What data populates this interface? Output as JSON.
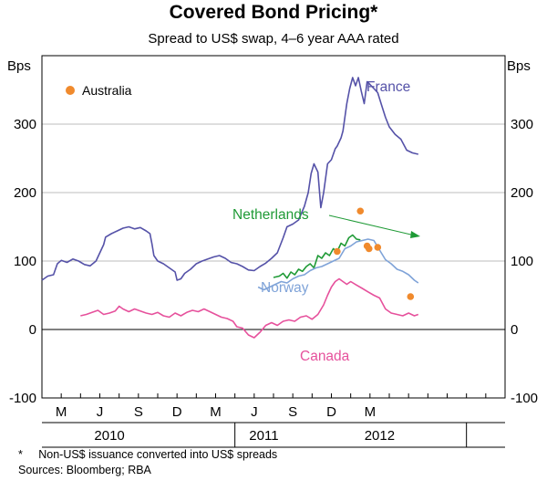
{
  "chart_data": {
    "type": "line",
    "title": "Covered Bond Pricing*",
    "subtitle": "Spread to US$ swap, 4–6 year AAA rated",
    "ylabel_left": "Bps",
    "ylabel_right": "Bps",
    "ylim": [
      -100,
      400
    ],
    "yticks": [
      -100,
      0,
      100,
      200,
      300
    ],
    "xlim": [
      0,
      24
    ],
    "month_ticks": [
      {
        "label": "M",
        "x": 1
      },
      {
        "label": "J",
        "x": 3
      },
      {
        "label": "S",
        "x": 5
      },
      {
        "label": "D",
        "x": 7
      },
      {
        "label": "M",
        "x": 9
      },
      {
        "label": "J",
        "x": 11
      },
      {
        "label": "S",
        "x": 13
      },
      {
        "label": "D",
        "x": 15
      },
      {
        "label": "M",
        "x": 17
      }
    ],
    "year_labels": [
      {
        "label": "2010",
        "x": 3.5
      },
      {
        "label": "2011",
        "x": 11.5
      },
      {
        "label": "2012",
        "x": 17.5
      }
    ],
    "series": [
      {
        "name": "France",
        "color": "#5552a8",
        "points": [
          [
            0.0,
            72
          ],
          [
            0.3,
            78
          ],
          [
            0.6,
            80
          ],
          [
            0.8,
            96
          ],
          [
            1.0,
            101
          ],
          [
            1.3,
            98
          ],
          [
            1.6,
            103
          ],
          [
            1.9,
            100
          ],
          [
            2.2,
            95
          ],
          [
            2.5,
            93
          ],
          [
            2.8,
            100
          ],
          [
            3.0,
            112
          ],
          [
            3.2,
            124
          ],
          [
            3.3,
            135
          ],
          [
            3.6,
            140
          ],
          [
            3.9,
            144
          ],
          [
            4.2,
            148
          ],
          [
            4.5,
            150
          ],
          [
            4.8,
            147
          ],
          [
            5.1,
            149
          ],
          [
            5.4,
            144
          ],
          [
            5.6,
            140
          ],
          [
            5.7,
            125
          ],
          [
            5.8,
            108
          ],
          [
            6.0,
            100
          ],
          [
            6.3,
            96
          ],
          [
            6.6,
            90
          ],
          [
            6.9,
            84
          ],
          [
            7.0,
            72
          ],
          [
            7.2,
            74
          ],
          [
            7.4,
            82
          ],
          [
            7.7,
            88
          ],
          [
            8.0,
            96
          ],
          [
            8.3,
            100
          ],
          [
            8.6,
            103
          ],
          [
            8.9,
            106
          ],
          [
            9.2,
            108
          ],
          [
            9.5,
            104
          ],
          [
            9.8,
            98
          ],
          [
            10.1,
            96
          ],
          [
            10.4,
            92
          ],
          [
            10.7,
            87
          ],
          [
            11.0,
            86
          ],
          [
            11.3,
            92
          ],
          [
            11.6,
            97
          ],
          [
            11.9,
            104
          ],
          [
            12.2,
            112
          ],
          [
            12.5,
            134
          ],
          [
            12.7,
            150
          ],
          [
            13.0,
            154
          ],
          [
            13.3,
            160
          ],
          [
            13.6,
            180
          ],
          [
            13.8,
            200
          ],
          [
            13.95,
            228
          ],
          [
            14.1,
            242
          ],
          [
            14.3,
            230
          ],
          [
            14.45,
            178
          ],
          [
            14.6,
            200
          ],
          [
            14.8,
            242
          ],
          [
            15.0,
            248
          ],
          [
            15.2,
            264
          ],
          [
            15.3,
            268
          ],
          [
            15.5,
            280
          ],
          [
            15.6,
            290
          ],
          [
            15.7,
            310
          ],
          [
            15.8,
            330
          ],
          [
            15.95,
            352
          ],
          [
            16.1,
            368
          ],
          [
            16.25,
            356
          ],
          [
            16.4,
            368
          ],
          [
            16.55,
            348
          ],
          [
            16.7,
            330
          ],
          [
            16.85,
            362
          ],
          [
            17.0,
            358
          ],
          [
            17.2,
            352
          ],
          [
            17.4,
            346
          ],
          [
            17.6,
            328
          ],
          [
            17.8,
            310
          ],
          [
            18.0,
            296
          ],
          [
            18.3,
            285
          ],
          [
            18.6,
            278
          ],
          [
            18.9,
            262
          ],
          [
            19.2,
            258
          ],
          [
            19.5,
            256
          ]
        ]
      },
      {
        "name": "Netherlands",
        "color": "#1f9a36",
        "points": [
          [
            12.0,
            76
          ],
          [
            12.3,
            78
          ],
          [
            12.5,
            82
          ],
          [
            12.7,
            75
          ],
          [
            12.9,
            84
          ],
          [
            13.1,
            80
          ],
          [
            13.3,
            88
          ],
          [
            13.5,
            85
          ],
          [
            13.7,
            92
          ],
          [
            13.9,
            96
          ],
          [
            14.1,
            90
          ],
          [
            14.3,
            108
          ],
          [
            14.5,
            104
          ],
          [
            14.7,
            112
          ],
          [
            14.9,
            108
          ],
          [
            15.1,
            118
          ],
          [
            15.3,
            114
          ],
          [
            15.5,
            126
          ],
          [
            15.7,
            122
          ],
          [
            15.9,
            134
          ],
          [
            16.1,
            138
          ],
          [
            16.3,
            132
          ],
          [
            16.5,
            131
          ]
        ]
      },
      {
        "name": "Norway",
        "color": "#7fa3d8",
        "points": [
          [
            11.2,
            62
          ],
          [
            11.5,
            58
          ],
          [
            11.8,
            62
          ],
          [
            12.1,
            66
          ],
          [
            12.4,
            70
          ],
          [
            12.7,
            68
          ],
          [
            13.0,
            74
          ],
          [
            13.3,
            78
          ],
          [
            13.6,
            80
          ],
          [
            13.9,
            86
          ],
          [
            14.2,
            90
          ],
          [
            14.5,
            92
          ],
          [
            14.8,
            96
          ],
          [
            15.1,
            100
          ],
          [
            15.4,
            104
          ],
          [
            15.7,
            118
          ],
          [
            16.0,
            122
          ],
          [
            16.3,
            128
          ],
          [
            16.6,
            130
          ],
          [
            16.9,
            132
          ],
          [
            17.2,
            130
          ],
          [
            17.5,
            116
          ],
          [
            17.8,
            102
          ],
          [
            18.1,
            96
          ],
          [
            18.4,
            88
          ],
          [
            18.7,
            85
          ],
          [
            19.0,
            80
          ],
          [
            19.3,
            72
          ],
          [
            19.5,
            68
          ]
        ]
      },
      {
        "name": "Canada",
        "color": "#e6519c",
        "points": [
          [
            2.0,
            20
          ],
          [
            2.3,
            22
          ],
          [
            2.6,
            25
          ],
          [
            2.9,
            28
          ],
          [
            3.2,
            22
          ],
          [
            3.5,
            24
          ],
          [
            3.8,
            27
          ],
          [
            4.0,
            34
          ],
          [
            4.2,
            30
          ],
          [
            4.5,
            26
          ],
          [
            4.8,
            30
          ],
          [
            5.1,
            27
          ],
          [
            5.4,
            24
          ],
          [
            5.7,
            22
          ],
          [
            6.0,
            25
          ],
          [
            6.3,
            20
          ],
          [
            6.6,
            18
          ],
          [
            6.9,
            24
          ],
          [
            7.2,
            20
          ],
          [
            7.5,
            25
          ],
          [
            7.8,
            28
          ],
          [
            8.1,
            26
          ],
          [
            8.4,
            30
          ],
          [
            8.7,
            26
          ],
          [
            9.0,
            22
          ],
          [
            9.3,
            18
          ],
          [
            9.6,
            16
          ],
          [
            9.9,
            12
          ],
          [
            10.1,
            4
          ],
          [
            10.4,
            2
          ],
          [
            10.7,
            -8
          ],
          [
            11.0,
            -12
          ],
          [
            11.3,
            -4
          ],
          [
            11.6,
            6
          ],
          [
            11.9,
            10
          ],
          [
            12.2,
            6
          ],
          [
            12.5,
            12
          ],
          [
            12.8,
            14
          ],
          [
            13.1,
            12
          ],
          [
            13.4,
            18
          ],
          [
            13.7,
            20
          ],
          [
            14.0,
            15
          ],
          [
            14.3,
            22
          ],
          [
            14.6,
            36
          ],
          [
            14.8,
            50
          ],
          [
            15.0,
            62
          ],
          [
            15.2,
            70
          ],
          [
            15.4,
            74
          ],
          [
            15.6,
            70
          ],
          [
            15.8,
            66
          ],
          [
            16.0,
            70
          ],
          [
            16.3,
            65
          ],
          [
            16.6,
            60
          ],
          [
            16.9,
            55
          ],
          [
            17.2,
            50
          ],
          [
            17.5,
            46
          ],
          [
            17.8,
            30
          ],
          [
            18.1,
            24
          ],
          [
            18.4,
            22
          ],
          [
            18.7,
            20
          ],
          [
            19.0,
            24
          ],
          [
            19.3,
            20
          ],
          [
            19.5,
            22
          ]
        ]
      }
    ],
    "scatter": {
      "name": "Australia",
      "color": "#f08a2d",
      "points": [
        [
          15.3,
          114
        ],
        [
          16.5,
          173
        ],
        [
          16.85,
          122
        ],
        [
          16.95,
          118
        ],
        [
          17.4,
          120
        ],
        [
          19.1,
          48
        ]
      ]
    },
    "series_labels": {
      "France": "France",
      "Netherlands": "Netherlands",
      "Norway": "Norway",
      "Canada": "Canada"
    },
    "legend": {
      "label": "Australia",
      "position": "top-left"
    },
    "footnote": "*     Non-US$ issuance converted into US$ spreads",
    "sources": "Sources: Bloomberg; RBA"
  }
}
